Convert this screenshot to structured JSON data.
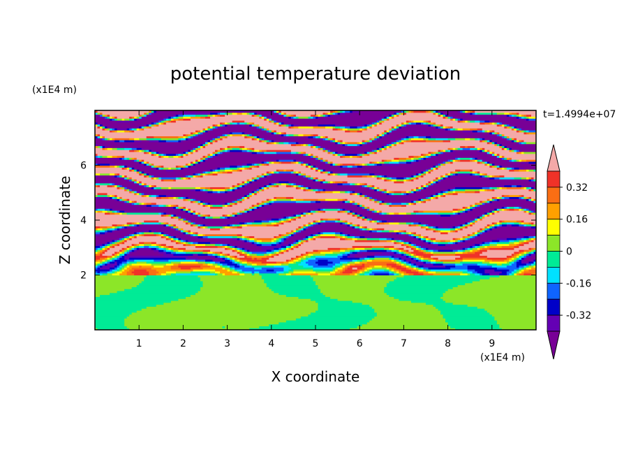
{
  "chart_data": {
    "type": "heatmap",
    "title": "potential temperature deviation",
    "xlabel": "X coordinate",
    "ylabel": "Z coordinate",
    "x_unit": "(x1E4 m)",
    "y_unit": "(x1E4 m)",
    "time_label": "t=1.4994e+07",
    "xlim": [
      0,
      10
    ],
    "ylim": [
      0,
      8
    ],
    "x_ticks": [
      "1",
      "2",
      "3",
      "4",
      "5",
      "6",
      "7",
      "8",
      "9"
    ],
    "y_ticks": [
      "2",
      "4",
      "6"
    ],
    "colorbar": {
      "levels": [
        -0.48,
        -0.4,
        -0.32,
        -0.24,
        -0.16,
        -0.08,
        0,
        0.08,
        0.16,
        0.24,
        0.32,
        0.4,
        0.48
      ],
      "labels": [
        "0.32",
        "0.16",
        "0",
        "-0.16",
        "-0.32"
      ],
      "label_values": [
        0.32,
        0.16,
        0,
        -0.16,
        -0.32
      ],
      "colors_high_to_low": [
        "#f4a9a8",
        "#f03228",
        "#fa6e14",
        "#ffa000",
        "#ffff00",
        "#8ce628",
        "#00eb96",
        "#00e1ff",
        "#0f64ff",
        "#0000c8",
        "#6400b4",
        "#780096"
      ],
      "extend": "both"
    },
    "field_bands": [
      {
        "z": [
          0,
          2
        ],
        "description_colors": [
          "#8ce628",
          "#00eb96"
        ]
      },
      {
        "z": [
          2,
          4
        ],
        "description_colors": [
          "#ffff00",
          "#ffa000",
          "#fa6e14",
          "#00e1ff",
          "#0f64ff",
          "#6400b4"
        ]
      },
      {
        "z": [
          4,
          8
        ],
        "description_colors": [
          "#f4a9a8",
          "#6400b4",
          "#780096"
        ]
      }
    ]
  }
}
